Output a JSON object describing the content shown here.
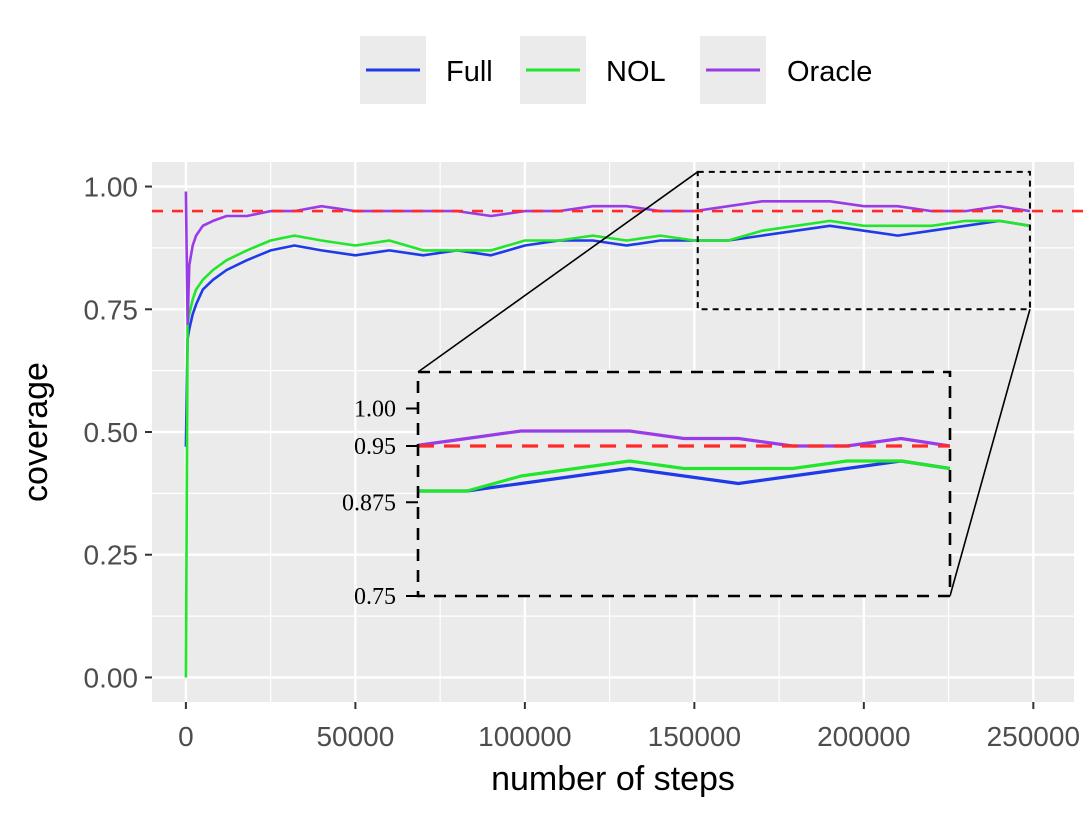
{
  "chart_data": {
    "type": "line",
    "xlabel": "number of steps",
    "ylabel": "coverage",
    "xlim": [
      -10000,
      262000
    ],
    "ylim": [
      -0.05,
      1.05
    ],
    "x_ticks": [
      0,
      50000,
      100000,
      150000,
      200000,
      250000
    ],
    "y_ticks": [
      "0.00",
      "0.25",
      "0.50",
      "0.75",
      "1.00"
    ],
    "grid": true,
    "legend_position": "top",
    "reference_line": {
      "y": 0.95,
      "color": "#ff2a2a",
      "style": "dashed"
    },
    "series": [
      {
        "name": "Full",
        "color": "#1f3be8",
        "x": [
          0,
          500,
          1000,
          2000,
          3000,
          5000,
          8000,
          12000,
          18000,
          25000,
          32000,
          40000,
          50000,
          60000,
          70000,
          80000,
          90000,
          100000,
          110000,
          120000,
          130000,
          140000,
          150000,
          160000,
          170000,
          180000,
          190000,
          200000,
          210000,
          220000,
          230000,
          240000,
          249000
        ],
        "y": [
          0.47,
          0.69,
          0.71,
          0.74,
          0.76,
          0.79,
          0.81,
          0.83,
          0.85,
          0.87,
          0.88,
          0.87,
          0.86,
          0.87,
          0.86,
          0.87,
          0.86,
          0.88,
          0.89,
          0.89,
          0.88,
          0.89,
          0.89,
          0.89,
          0.9,
          0.91,
          0.92,
          0.91,
          0.9,
          0.91,
          0.92,
          0.93,
          0.92
        ]
      },
      {
        "name": "NOL",
        "color": "#21e62b",
        "x": [
          0,
          500,
          1000,
          2000,
          3000,
          5000,
          8000,
          12000,
          18000,
          25000,
          32000,
          40000,
          50000,
          60000,
          70000,
          80000,
          90000,
          100000,
          110000,
          120000,
          130000,
          140000,
          150000,
          160000,
          170000,
          180000,
          190000,
          200000,
          210000,
          220000,
          230000,
          240000,
          249000
        ],
        "y": [
          0.0,
          0.72,
          0.74,
          0.77,
          0.79,
          0.81,
          0.83,
          0.85,
          0.87,
          0.89,
          0.9,
          0.89,
          0.88,
          0.89,
          0.87,
          0.87,
          0.87,
          0.89,
          0.89,
          0.9,
          0.89,
          0.9,
          0.89,
          0.89,
          0.91,
          0.92,
          0.93,
          0.92,
          0.92,
          0.92,
          0.93,
          0.93,
          0.92
        ]
      },
      {
        "name": "Oracle",
        "color": "#9a3be8",
        "x": [
          0,
          500,
          1000,
          2000,
          3000,
          5000,
          8000,
          12000,
          18000,
          25000,
          32000,
          40000,
          50000,
          60000,
          70000,
          80000,
          90000,
          100000,
          110000,
          120000,
          130000,
          140000,
          150000,
          160000,
          170000,
          180000,
          190000,
          200000,
          210000,
          220000,
          230000,
          240000,
          249000
        ],
        "y": [
          0.99,
          0.72,
          0.84,
          0.88,
          0.9,
          0.92,
          0.93,
          0.94,
          0.94,
          0.95,
          0.95,
          0.96,
          0.95,
          0.95,
          0.95,
          0.95,
          0.94,
          0.95,
          0.95,
          0.96,
          0.96,
          0.95,
          0.95,
          0.96,
          0.97,
          0.97,
          0.97,
          0.96,
          0.96,
          0.95,
          0.95,
          0.96,
          0.95
        ]
      }
    ],
    "inset": {
      "x_range": [
        151000,
        249000
      ],
      "y_range": [
        0.75,
        1.03
      ],
      "y_ticks": [
        {
          "value": 1.0,
          "label": "1.00",
          "color": "#000000"
        },
        {
          "value": 0.95,
          "label": "0.95",
          "color": "#e8112d"
        },
        {
          "value": 0.875,
          "label": "0.875",
          "color": "#000000"
        },
        {
          "value": 0.75,
          "label": "0.75",
          "color": "#000000"
        }
      ]
    }
  }
}
